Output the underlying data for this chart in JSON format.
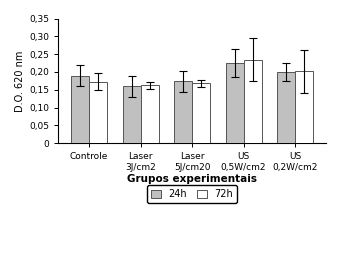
{
  "categories": [
    "Controle",
    "Laser\n3J/cm2",
    "Laser\n5J/cm20",
    "US\n0,5W/cm2",
    "US\n0,2W/cm2"
  ],
  "values_24h": [
    0.19,
    0.16,
    0.174,
    0.225,
    0.199
  ],
  "values_72h": [
    0.173,
    0.162,
    0.168,
    0.234,
    0.202
  ],
  "errors_24h": [
    0.03,
    0.03,
    0.03,
    0.04,
    0.025
  ],
  "errors_72h": [
    0.025,
    0.01,
    0.01,
    0.06,
    0.06
  ],
  "color_24h": "#c0c0c0",
  "color_72h": "#ffffff",
  "ylabel": "D.O. 620 nm",
  "xlabel": "Grupos experimentais",
  "ylim": [
    0,
    0.35
  ],
  "yticks": [
    0,
    0.05,
    0.1,
    0.15,
    0.2,
    0.25,
    0.3,
    0.35
  ],
  "ytick_labels": [
    "0",
    "0,05",
    "0,10",
    "0,15",
    "0,20",
    "0,25",
    "0,30",
    "0,35"
  ],
  "legend_24h": "24h",
  "legend_72h": "72h",
  "bar_width": 0.35,
  "edge_color": "#555555",
  "bar_linewidth": 0.7,
  "error_linewidth": 0.8,
  "capsize": 3
}
